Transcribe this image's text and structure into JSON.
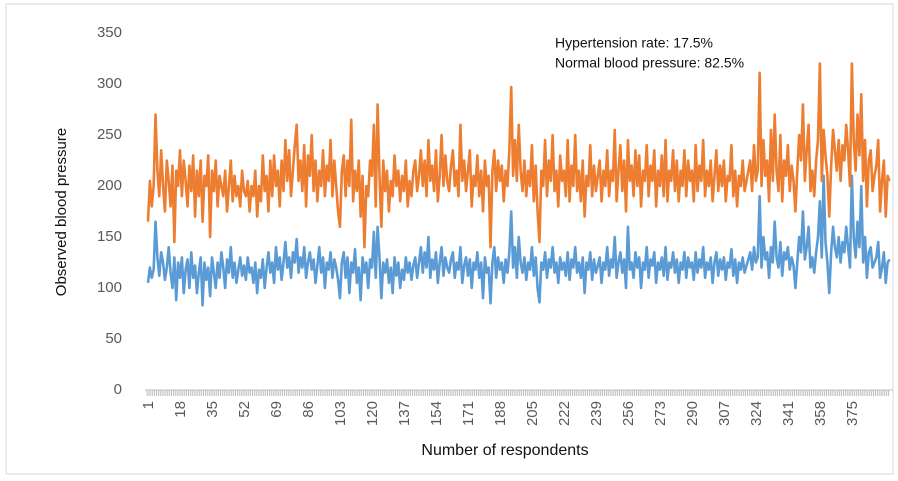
{
  "chart_data": {
    "type": "line",
    "y_label": "Observed blood pressure",
    "x_label": "Number of respondents",
    "annotations": [
      "Hypertension rate: 17.5%",
      "Normal blood pressure: 82.5%"
    ],
    "ylim": [
      0,
      350
    ],
    "yticks": [
      0,
      50,
      100,
      150,
      200,
      250,
      300,
      350
    ],
    "grid": false,
    "categories": [
      "1",
      null,
      null,
      null,
      null,
      null,
      null,
      null,
      null,
      null,
      null,
      null,
      null,
      null,
      null,
      null,
      null,
      "18",
      null,
      null,
      null,
      null,
      null,
      null,
      null,
      null,
      null,
      null,
      null,
      null,
      null,
      null,
      null,
      null,
      "35",
      null,
      null,
      null,
      null,
      null,
      null,
      null,
      null,
      null,
      null,
      null,
      null,
      null,
      null,
      null,
      null,
      "52",
      null,
      null,
      null,
      null,
      null,
      null,
      null,
      null,
      null,
      null,
      null,
      null,
      null,
      null,
      null,
      null,
      "69",
      null,
      null,
      null,
      null,
      null,
      null,
      null,
      null,
      null,
      null,
      null,
      null,
      null,
      null,
      null,
      null,
      "86",
      null,
      null,
      null,
      null,
      null,
      null,
      null,
      null,
      null,
      null,
      null,
      null,
      null,
      null,
      null,
      null,
      "103",
      null,
      null,
      null,
      null,
      null,
      null,
      null,
      null,
      null,
      null,
      null,
      null,
      null,
      null,
      null,
      null,
      "120",
      null,
      null,
      null,
      null,
      null,
      null,
      null,
      null,
      null,
      null,
      null,
      null,
      null,
      null,
      null,
      null,
      "137",
      null,
      null,
      null,
      null,
      null,
      null,
      null,
      null,
      null,
      null,
      null,
      null,
      null,
      null,
      null,
      null,
      "154",
      null,
      null,
      null,
      null,
      null,
      null,
      null,
      null,
      null,
      null,
      null,
      null,
      null,
      null,
      null,
      null,
      "171",
      null,
      null,
      null,
      null,
      null,
      null,
      null,
      null,
      null,
      null,
      null,
      null,
      null,
      null,
      null,
      null,
      "188",
      null,
      null,
      null,
      null,
      null,
      null,
      null,
      null,
      null,
      null,
      null,
      null,
      null,
      null,
      null,
      null,
      "205",
      null,
      null,
      null,
      null,
      null,
      null,
      null,
      null,
      null,
      null,
      null,
      null,
      null,
      null,
      null,
      null,
      "222",
      null,
      null,
      null,
      null,
      null,
      null,
      null,
      null,
      null,
      null,
      null,
      null,
      null,
      null,
      null,
      null,
      "239",
      null,
      null,
      null,
      null,
      null,
      null,
      null,
      null,
      null,
      null,
      null,
      null,
      null,
      null,
      null,
      null,
      "256",
      null,
      null,
      null,
      null,
      null,
      null,
      null,
      null,
      null,
      null,
      null,
      null,
      null,
      null,
      null,
      null,
      "273",
      null,
      null,
      null,
      null,
      null,
      null,
      null,
      null,
      null,
      null,
      null,
      null,
      null,
      null,
      null,
      null,
      "290",
      null,
      null,
      null,
      null,
      null,
      null,
      null,
      null,
      null,
      null,
      null,
      null,
      null,
      null,
      null,
      null,
      "307",
      null,
      null,
      null,
      null,
      null,
      null,
      null,
      null,
      null,
      null,
      null,
      null,
      null,
      null,
      null,
      null,
      "324",
      null,
      null,
      null,
      null,
      null,
      null,
      null,
      null,
      null,
      null,
      null,
      null,
      null,
      null,
      null,
      null,
      "341",
      null,
      null,
      null,
      null,
      null,
      null,
      null,
      null,
      null,
      null,
      null,
      null,
      null,
      null,
      null,
      null,
      "358",
      null,
      null,
      null,
      null,
      null,
      null,
      null,
      null,
      null,
      null,
      null,
      null,
      null,
      null,
      null,
      null,
      "375",
      null,
      null,
      null,
      null,
      null,
      null,
      null,
      null,
      null,
      null,
      null,
      null,
      null,
      null,
      null,
      null,
      null,
      null,
      null,
      null
    ],
    "series": [
      {
        "color": "#5b9bd5",
        "values": [
          105,
          120,
          110,
          118,
          165,
          130,
          112,
          135,
          125,
          108,
          120,
          140,
          115,
          100,
          130,
          88,
          125,
          110,
          130,
          95,
          118,
          128,
          100,
          135,
          110,
          122,
          95,
          115,
          130,
          83,
          125,
          108,
          120,
          92,
          130,
          115,
          100,
          125,
          110,
          135,
          120,
          100,
          128,
          115,
          140,
          110,
          125,
          105,
          118,
          130,
          112,
          122,
          108,
          130,
          115,
          120,
          105,
          125,
          95,
          118,
          110,
          128,
          100,
          120,
          135,
          115,
          125,
          105,
          140,
          118,
          130,
          108,
          125,
          145,
          120,
          130,
          110,
          135,
          125,
          148,
          115,
          130,
          120,
          140,
          110,
          125,
          135,
          118,
          128,
          105,
          122,
          140,
          115,
          130,
          100,
          125,
          118,
          135,
          110,
          128,
          120,
          108,
          90,
          125,
          135,
          110,
          130,
          95,
          125,
          115,
          138,
          105,
          120,
          88,
          130,
          115,
          125,
          100,
          128,
          120,
          155,
          110,
          160,
          130,
          90,
          125,
          115,
          128,
          105,
          120,
          95,
          130,
          112,
          125,
          100,
          118,
          108,
          130,
          115,
          125,
          108,
          122,
          130,
          110,
          125,
          140,
          115,
          135,
          120,
          150,
          110,
          128,
          118,
          135,
          105,
          125,
          140,
          112,
          130,
          120,
          115,
          128,
          135,
          110,
          125,
          118,
          140,
          105,
          122,
          130,
          112,
          128,
          100,
          125,
          118,
          135,
          110,
          125,
          90,
          130,
          115,
          120,
          85,
          125,
          140,
          110,
          130,
          118,
          125,
          105,
          128,
          115,
          135,
          175,
          120,
          140,
          110,
          150,
          125,
          115,
          130,
          108,
          125,
          118,
          140,
          112,
          130,
          100,
          86,
          125,
          118,
          135,
          110,
          128,
          120,
          140,
          115,
          125,
          105,
          130,
          118,
          125,
          112,
          135,
          108,
          128,
          120,
          140,
          115,
          125,
          110,
          130,
          95,
          125,
          118,
          135,
          108,
          128,
          115,
          122,
          130,
          105,
          125,
          118,
          140,
          112,
          128,
          120,
          150,
          110,
          125,
          135,
          115,
          128,
          100,
          160,
          118,
          125,
          110,
          135,
          120,
          130,
          100,
          125,
          118,
          140,
          110,
          128,
          122,
          135,
          105,
          125,
          118,
          130,
          112,
          140,
          108,
          125,
          120,
          135,
          115,
          128,
          105,
          125,
          118,
          135,
          110,
          130,
          120,
          125,
          108,
          135,
          115,
          128,
          120,
          140,
          110,
          125,
          118,
          130,
          105,
          125,
          135,
          112,
          128,
          118,
          130,
          108,
          125,
          120,
          138,
          112,
          128,
          105,
          125,
          118,
          130,
          115,
          122,
          128,
          135,
          118,
          140,
          125,
          130,
          190,
          120,
          150,
          128,
          135,
          110,
          140,
          125,
          165,
          130,
          120,
          145,
          112,
          135,
          128,
          140,
          118,
          130,
          122,
          100,
          125,
          150,
          135,
          175,
          128,
          140,
          160,
          120,
          130,
          115,
          135,
          150,
          185,
          130,
          210,
          145,
          125,
          95,
          135,
          160,
          140,
          130,
          150,
          125,
          145,
          135,
          160,
          140,
          120,
          210,
          150,
          130,
          165,
          140,
          200,
          125,
          150,
          110,
          135,
          140,
          120,
          125,
          130,
          145,
          110,
          120,
          135,
          105,
          125,
          128
        ]
      },
      {
        "color": "#ed7d31",
        "values": [
          165,
          205,
          180,
          200,
          270,
          215,
          190,
          235,
          200,
          175,
          225,
          205,
          180,
          220,
          145,
          215,
          200,
          235,
          190,
          225,
          205,
          180,
          220,
          195,
          230,
          170,
          215,
          190,
          225,
          165,
          210,
          200,
          230,
          150,
          215,
          195,
          225,
          180,
          210,
          200,
          190,
          215,
          175,
          200,
          225,
          185,
          210,
          190,
          200,
          180,
          215,
          195,
          190,
          205,
          175,
          200,
          190,
          215,
          170,
          200,
          185,
          230,
          195,
          210,
          175,
          225,
          190,
          230,
          200,
          215,
          180,
          225,
          195,
          245,
          205,
          235,
          190,
          215,
          240,
          260,
          205,
          225,
          195,
          240,
          180,
          230,
          210,
          250,
          195,
          225,
          185,
          215,
          200,
          235,
          190,
          220,
          205,
          245,
          190,
          225,
          200,
          175,
          160,
          215,
          230,
          190,
          225,
          200,
          265,
          185,
          215,
          195,
          225,
          170,
          210,
          140,
          200,
          190,
          225,
          210,
          260,
          180,
          280,
          210,
          160,
          225,
          195,
          215,
          175,
          205,
          190,
          230,
          200,
          215,
          185,
          210,
          195,
          225,
          180,
          205,
          190,
          215,
          225,
          195,
          210,
          235,
          200,
          225,
          190,
          245,
          205,
          220,
          195,
          235,
          185,
          210,
          250,
          200,
          230,
          205,
          195,
          220,
          235,
          200,
          215,
          190,
          260,
          205,
          225,
          195,
          215,
          235,
          180,
          210,
          200,
          230,
          190,
          215,
          175,
          225,
          200,
          210,
          140,
          215,
          235,
          195,
          225,
          205,
          220,
          185,
          215,
          200,
          235,
          297,
          210,
          245,
          205,
          260,
          215,
          195,
          225,
          190,
          215,
          200,
          240,
          185,
          220,
          175,
          145,
          215,
          200,
          245,
          190,
          225,
          205,
          250,
          195,
          215,
          180,
          230,
          205,
          215,
          190,
          245,
          185,
          220,
          200,
          250,
          195,
          215,
          185,
          225,
          170,
          210,
          200,
          240,
          190,
          220,
          195,
          210,
          225,
          185,
          215,
          200,
          235,
          190,
          215,
          205,
          255,
          185,
          215,
          240,
          195,
          225,
          175,
          245,
          205,
          220,
          190,
          235,
          200,
          230,
          180,
          215,
          205,
          240,
          190,
          220,
          205,
          235,
          180,
          215,
          200,
          230,
          190,
          245,
          185,
          215,
          205,
          235,
          195,
          225,
          185,
          215,
          200,
          235,
          190,
          225,
          205,
          215,
          185,
          240,
          195,
          220,
          205,
          245,
          190,
          215,
          200,
          225,
          185,
          210,
          235,
          195,
          220,
          200,
          225,
          185,
          210,
          205,
          240,
          190,
          215,
          180,
          210,
          200,
          225,
          195,
          205,
          215,
          225,
          195,
          240,
          205,
          215,
          311,
          200,
          245,
          210,
          225,
          185,
          255,
          205,
          270,
          215,
          195,
          250,
          185,
          225,
          210,
          240,
          195,
          220,
          205,
          175,
          215,
          250,
          225,
          280,
          205,
          235,
          260,
          195,
          215,
          190,
          225,
          245,
          320,
          205,
          255,
          230,
          210,
          170,
          220,
          255,
          235,
          215,
          245,
          205,
          240,
          225,
          260,
          235,
          200,
          320,
          245,
          215,
          270,
          230,
          290,
          205,
          245,
          180,
          225,
          235,
          195,
          210,
          220,
          245,
          175,
          205,
          225,
          170,
          210,
          205
        ]
      }
    ]
  }
}
